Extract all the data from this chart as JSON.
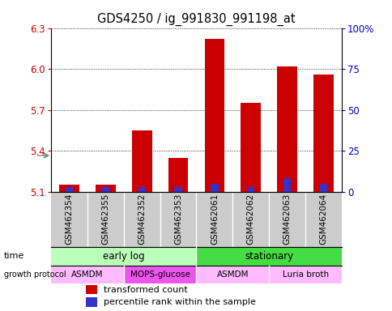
{
  "title": "GDS4250 / ig_991830_991198_at",
  "samples": [
    "GSM462354",
    "GSM462355",
    "GSM462352",
    "GSM462353",
    "GSM462061",
    "GSM462062",
    "GSM462063",
    "GSM462064"
  ],
  "transformed_counts": [
    5.15,
    5.15,
    5.55,
    5.35,
    6.22,
    5.75,
    6.02,
    5.96
  ],
  "percentile_ranks": [
    3.0,
    3.0,
    3.0,
    3.0,
    5.0,
    3.0,
    8.0,
    5.0
  ],
  "ylim": [
    5.1,
    6.3
  ],
  "yticks_left": [
    5.1,
    5.4,
    5.7,
    6.0,
    6.3
  ],
  "yticks_right_labels": [
    "0",
    "25",
    "50",
    "75",
    "100%"
  ],
  "yticks_right_positions": [
    5.1,
    5.4,
    5.7,
    6.0,
    6.3
  ],
  "bar_color": "#cc0000",
  "percentile_color": "#3333cc",
  "bar_base": 5.1,
  "time_groups": [
    {
      "label": "early log",
      "start": 0,
      "end": 4,
      "color": "#bbffbb"
    },
    {
      "label": "stationary",
      "start": 4,
      "end": 8,
      "color": "#44dd44"
    }
  ],
  "protocol_groups": [
    {
      "label": "ASMDM",
      "start": 0,
      "end": 2,
      "color": "#ffbbff"
    },
    {
      "label": "MOPS-glucose",
      "start": 2,
      "end": 4,
      "color": "#ee55ee"
    },
    {
      "label": "ASMDM",
      "start": 4,
      "end": 6,
      "color": "#ffbbff"
    },
    {
      "label": "Luria broth",
      "start": 6,
      "end": 8,
      "color": "#ffbbff"
    }
  ],
  "legend_red": "transformed count",
  "legend_blue": "percentile rank within the sample",
  "bg_color": "#ffffff",
  "sample_area_color": "#cccccc"
}
